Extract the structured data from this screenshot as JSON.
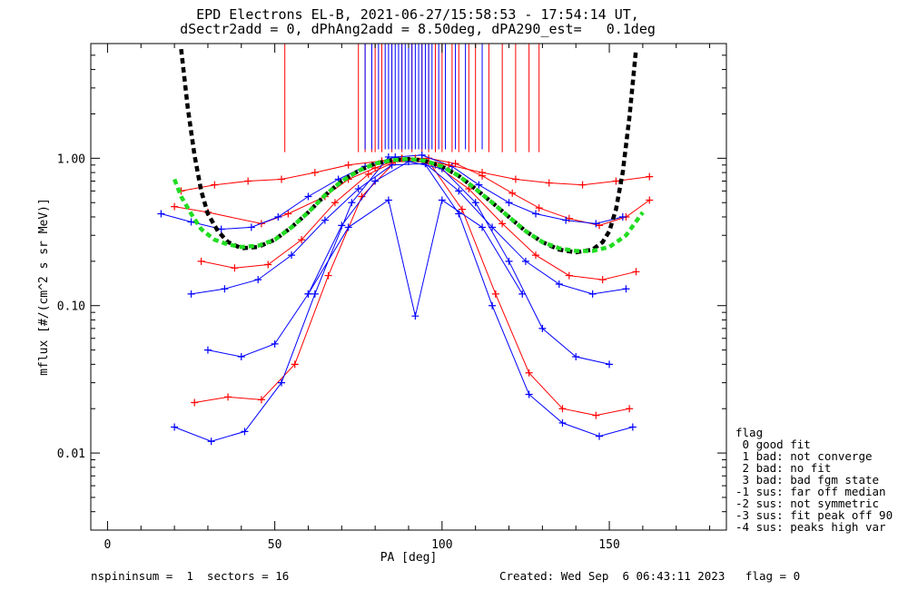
{
  "title_line1": "EPD Electrons EL-B, 2021-06-27/15:58:53 - 17:54:14 UT,",
  "title_line2": "dSectr2add = 0, dPhAng2add = 8.50deg, dPA290_est=   0.1deg",
  "legend": {
    "title": "flag",
    "items": [
      " 0 good fit",
      " 1 bad: not converge",
      " 2 bad: no fit",
      " 3 bad: bad fgm state",
      "-1 sus: far off median",
      "-2 sus: not symmetric",
      "-3 sus: fit peak off 90",
      "-4 sus: peaks high var"
    ]
  },
  "footer": {
    "left": "nspininsum =  1  sectors = 16",
    "right": "Created: Wed Sep  6 06:43:11 2023   flag = 0"
  },
  "colors": {
    "ramp_a": "#ff0000",
    "ramp_b": "#0000ff",
    "fit_model": "#000000",
    "fit_curve": "#22dd22"
  },
  "chart_data": {
    "type": "line",
    "xlabel": "PA [deg]",
    "ylabel": "mflux [#/(cm^2 s sr MeV)]",
    "xlim": [
      -5,
      185
    ],
    "ylim": [
      0.003,
      6
    ],
    "yscale": "log",
    "xticks": [
      0,
      50,
      100,
      150
    ],
    "xtick_labels": [
      "0",
      "50",
      "100",
      "150"
    ],
    "yticks": [
      0.01,
      0.1,
      1.0
    ],
    "ytick_labels": [
      "0.01",
      "0.10",
      "1.00"
    ],
    "series": [
      {
        "color": "red",
        "x": [
          20,
          30,
          46,
          54,
          65,
          72,
          80,
          88,
          96,
          104,
          112,
          121,
          129,
          138,
          147,
          155,
          162
        ],
        "y": [
          0.47,
          0.43,
          0.36,
          0.42,
          0.55,
          0.72,
          0.86,
          1.0,
          1.0,
          0.92,
          0.76,
          0.58,
          0.46,
          0.39,
          0.35,
          0.4,
          0.52
        ]
      },
      {
        "color": "blue",
        "x": [
          16,
          25,
          34,
          43,
          51,
          60,
          69,
          77,
          86,
          94,
          103,
          111,
          120,
          128,
          137,
          146,
          154
        ],
        "y": [
          0.42,
          0.37,
          0.33,
          0.34,
          0.4,
          0.55,
          0.72,
          0.88,
          1.02,
          1.05,
          0.88,
          0.66,
          0.5,
          0.42,
          0.38,
          0.36,
          0.4
        ]
      },
      {
        "color": "red",
        "x": [
          26,
          36,
          46,
          56,
          66,
          76,
          86,
          96,
          106,
          116,
          126,
          136,
          146,
          156
        ],
        "y": [
          0.022,
          0.024,
          0.023,
          0.04,
          0.16,
          0.55,
          0.95,
          0.95,
          0.45,
          0.12,
          0.035,
          0.02,
          0.018,
          0.02
        ]
      },
      {
        "color": "blue",
        "x": [
          20,
          31,
          41,
          52,
          62,
          73,
          84,
          94,
          105,
          115,
          126,
          136,
          147,
          157
        ],
        "y": [
          0.015,
          0.012,
          0.014,
          0.03,
          0.12,
          0.5,
          1.02,
          0.98,
          0.42,
          0.1,
          0.025,
          0.016,
          0.013,
          0.015
        ]
      },
      {
        "color": "blue",
        "x": [
          25,
          35,
          45,
          55,
          65,
          75,
          85,
          95,
          105,
          115,
          125,
          135,
          145,
          155
        ],
        "y": [
          0.12,
          0.13,
          0.15,
          0.22,
          0.38,
          0.62,
          0.9,
          0.92,
          0.6,
          0.34,
          0.2,
          0.14,
          0.12,
          0.13
        ]
      },
      {
        "color": "red",
        "x": [
          28,
          38,
          48,
          58,
          68,
          78,
          88,
          98,
          108,
          118,
          128,
          138,
          148,
          158
        ],
        "y": [
          0.2,
          0.18,
          0.19,
          0.28,
          0.5,
          0.78,
          1.0,
          0.9,
          0.62,
          0.36,
          0.22,
          0.16,
          0.15,
          0.17
        ]
      },
      {
        "color": "blue",
        "x": [
          30,
          40,
          50,
          60,
          70,
          80,
          90,
          100,
          110,
          120,
          130,
          140,
          150
        ],
        "y": [
          0.05,
          0.045,
          0.055,
          0.12,
          0.35,
          0.7,
          0.95,
          0.85,
          0.5,
          0.2,
          0.07,
          0.045,
          0.04
        ]
      },
      {
        "color": "red",
        "x": [
          22,
          32,
          42,
          52,
          62,
          72,
          82,
          92,
          102,
          112,
          122,
          132,
          142,
          152,
          162
        ],
        "y": [
          0.6,
          0.66,
          0.7,
          0.72,
          0.8,
          0.9,
          0.96,
          1.0,
          0.9,
          0.8,
          0.72,
          0.68,
          0.66,
          0.7,
          0.75
        ]
      },
      {
        "color": "blue",
        "x": [
          60,
          72,
          84,
          92,
          100,
          112,
          124
        ],
        "y": [
          0.12,
          0.34,
          0.52,
          0.085,
          0.52,
          0.34,
          0.12
        ]
      }
    ],
    "spikes_red_x": [
      53,
      75,
      77,
      79,
      80,
      82,
      85,
      88,
      91,
      94,
      96,
      98,
      100,
      103,
      105,
      108,
      110,
      114,
      118,
      122,
      126,
      129
    ],
    "spikes_blue_x": [
      77,
      79,
      81,
      83,
      84,
      85,
      86,
      87,
      88,
      89,
      90,
      91,
      92,
      93,
      94,
      95,
      96,
      97,
      99,
      101,
      104,
      107,
      112
    ],
    "fit_model_black": {
      "x": [
        22,
        24,
        26,
        28,
        30,
        33,
        36,
        40,
        45,
        50,
        55,
        60,
        65,
        70,
        75,
        80,
        85,
        90,
        95,
        100,
        105,
        110,
        115,
        120,
        125,
        130,
        135,
        140,
        145,
        148,
        150,
        152,
        154,
        156,
        158
      ],
      "y": [
        5.5,
        2.2,
        1.05,
        0.6,
        0.42,
        0.32,
        0.27,
        0.245,
        0.25,
        0.28,
        0.34,
        0.43,
        0.56,
        0.7,
        0.82,
        0.92,
        0.97,
        0.99,
        0.96,
        0.88,
        0.76,
        0.62,
        0.5,
        0.4,
        0.32,
        0.27,
        0.24,
        0.23,
        0.24,
        0.27,
        0.32,
        0.45,
        0.8,
        1.9,
        5.5
      ]
    },
    "fit_curve_green": {
      "x": [
        20,
        22,
        25,
        28,
        32,
        36,
        40,
        45,
        50,
        55,
        60,
        65,
        70,
        75,
        80,
        85,
        90,
        95,
        100,
        105,
        110,
        115,
        120,
        125,
        130,
        135,
        140,
        145,
        150,
        155,
        160
      ],
      "y": [
        0.72,
        0.55,
        0.42,
        0.33,
        0.28,
        0.26,
        0.25,
        0.255,
        0.28,
        0.34,
        0.43,
        0.56,
        0.7,
        0.82,
        0.92,
        0.97,
        0.99,
        0.96,
        0.88,
        0.76,
        0.62,
        0.5,
        0.4,
        0.32,
        0.27,
        0.245,
        0.235,
        0.235,
        0.25,
        0.3,
        0.43
      ]
    }
  }
}
